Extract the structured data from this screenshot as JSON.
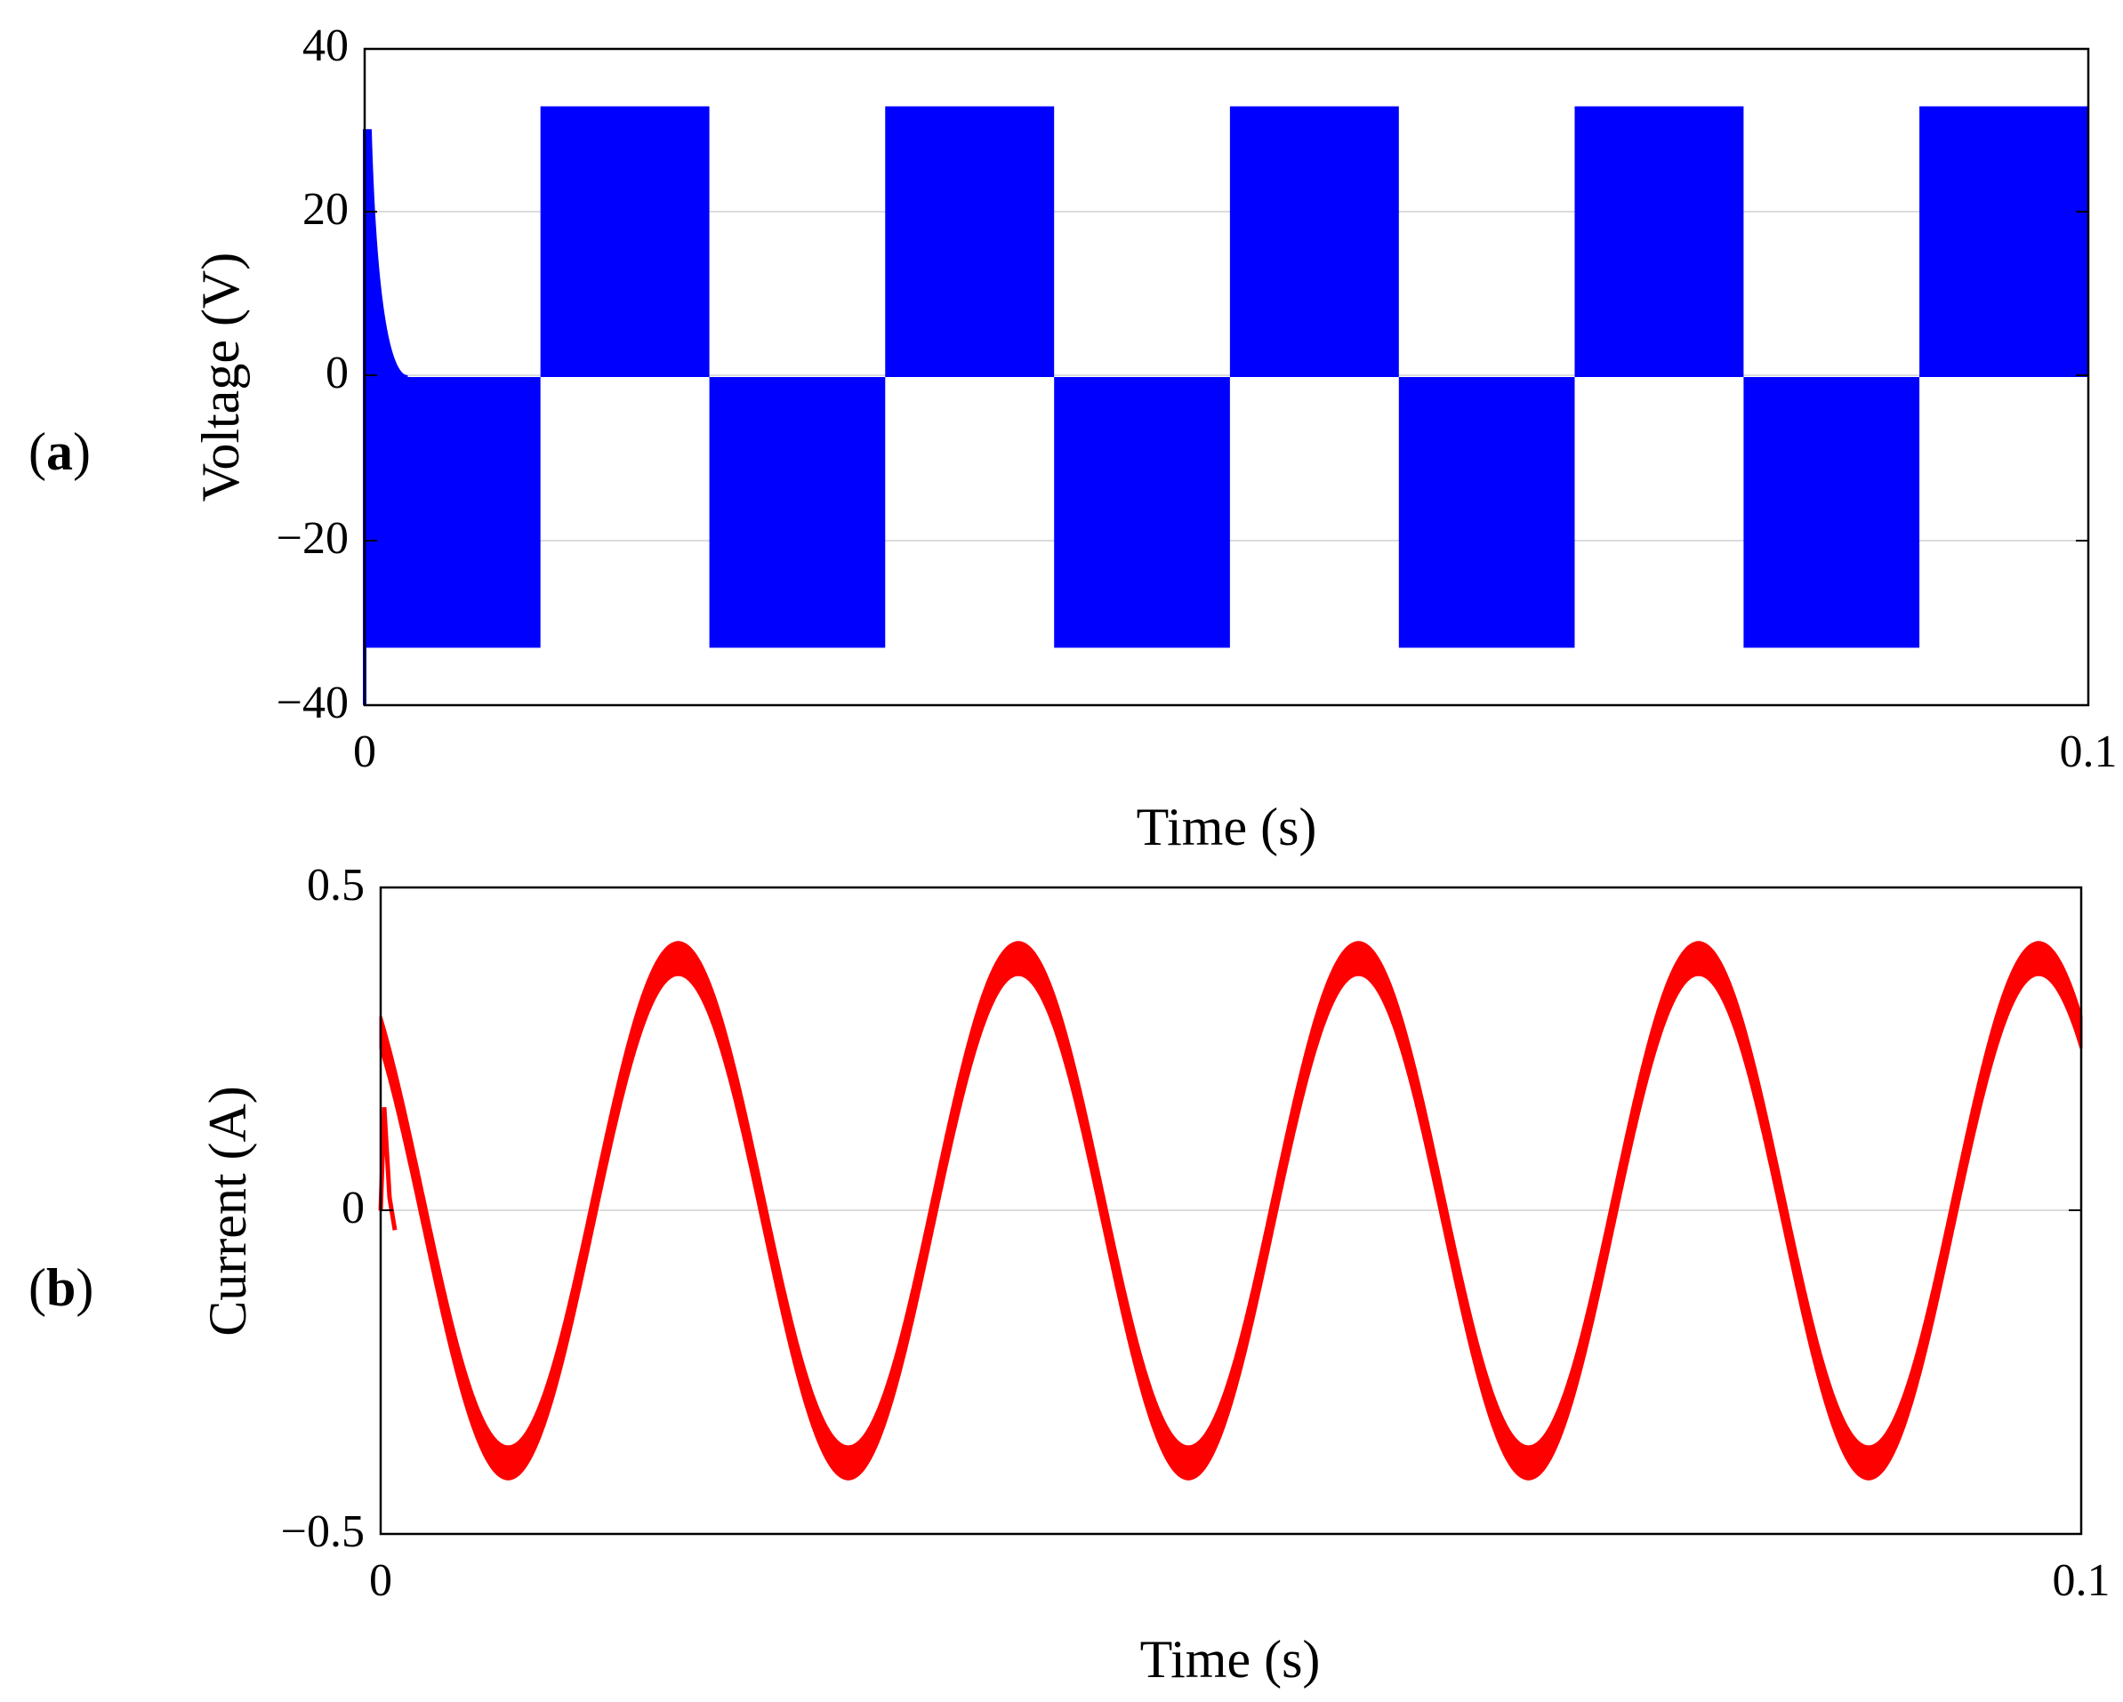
{
  "figure": {
    "panels": [
      {
        "letter": "a",
        "open": "(",
        "close": ")"
      },
      {
        "letter": "b",
        "open": "(",
        "close": ")"
      }
    ]
  },
  "chart_data": [
    {
      "id": "a",
      "type": "line",
      "xlabel": "Time (s)",
      "ylabel": "Voltage (V)",
      "xlim": [
        0,
        0.1
      ],
      "ylim": [
        -40,
        40
      ],
      "x_ticks": [
        0,
        0.1
      ],
      "x_tick_labels": [
        "0",
        "0.1"
      ],
      "y_ticks": [
        -40,
        -20,
        0,
        20,
        40
      ],
      "y_tick_labels": [
        "−40",
        "−20",
        "0",
        "20",
        "40"
      ],
      "grid": "horizontal",
      "series": [
        {
          "color": "#0000ff",
          "style": "high-frequency PWM switching, filled band",
          "amplitude": 33,
          "initial_spike": 30,
          "intervals": [
            {
              "start": 0,
              "end": 0.0102,
              "band": [
                -33,
                0
              ]
            },
            {
              "start": 0.0102,
              "end": 0.02,
              "band": [
                0,
                33
              ]
            },
            {
              "start": 0.02,
              "end": 0.0302,
              "band": [
                -33,
                0
              ]
            },
            {
              "start": 0.0302,
              "end": 0.04,
              "band": [
                0,
                33
              ]
            },
            {
              "start": 0.04,
              "end": 0.0502,
              "band": [
                -33,
                0
              ]
            },
            {
              "start": 0.0502,
              "end": 0.06,
              "band": [
                0,
                33
              ]
            },
            {
              "start": 0.06,
              "end": 0.0702,
              "band": [
                -33,
                0
              ]
            },
            {
              "start": 0.0702,
              "end": 0.08,
              "band": [
                0,
                33
              ]
            },
            {
              "start": 0.08,
              "end": 0.0902,
              "band": [
                -33,
                0
              ]
            },
            {
              "start": 0.0902,
              "end": 0.1,
              "band": [
                0,
                33
              ]
            }
          ]
        }
      ]
    },
    {
      "id": "b",
      "type": "line",
      "xlabel": "Time (s)",
      "ylabel": "Current (A)",
      "xlim": [
        0,
        0.1
      ],
      "ylim": [
        -0.5,
        0.5
      ],
      "x_ticks": [
        0,
        0.1
      ],
      "x_tick_labels": [
        "0",
        "0.1"
      ],
      "y_ticks": [
        -0.5,
        0,
        0.5
      ],
      "y_tick_labels": [
        "−0.5",
        "0",
        "0.5"
      ],
      "grid": "horizontal",
      "series": [
        {
          "color": "#ff0000",
          "style": "sinusoid with ripple band",
          "waveform": "sine",
          "amplitude": 0.39,
          "ripple": 0.025,
          "frequency_hz": 50,
          "phase_shift_s": 0.0025,
          "initial_spike": 0.16
        }
      ]
    }
  ]
}
